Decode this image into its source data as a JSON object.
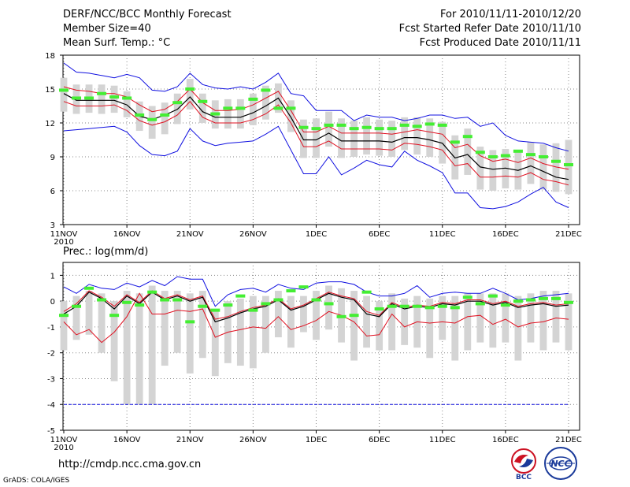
{
  "header": {
    "title": "DERF/NCC/BCC Monthly Forecast",
    "member_size": "Member Size=40",
    "variable": "Mean Surf. Temp.: °C",
    "period": "For 2010/11/11-2010/12/20",
    "fcst_started": "Fcst Started Refer Date 2010/11/10",
    "fcst_produced": "Fcst Produced Date 2010/11/11"
  },
  "footer": {
    "url": "http://cmdp.ncc.cma.gov.cn",
    "grads": "GrADS: COLA/IGES",
    "logo_bcc": "BCC",
    "logo_ncc": "NCC"
  },
  "colors": {
    "envelope": "#1010e0",
    "inner": "#e01020",
    "mean": "#000000",
    "marker": "#44ee33",
    "box": "#d4d4d4",
    "grid": "#888888"
  },
  "chart_data": [
    {
      "type": "line",
      "title": "Mean Surf. Temp.: °C",
      "x_labels": [
        "11NOV",
        "16NOV",
        "21NOV",
        "26NOV",
        "1DEC",
        "6DEC",
        "11DEC",
        "16DEC",
        "21DEC"
      ],
      "x_sub_label": "2010",
      "x_label_days": [
        1,
        6,
        11,
        16,
        21,
        26,
        31,
        36,
        41
      ],
      "xlim": [
        1,
        41
      ],
      "ylim": [
        3,
        18
      ],
      "yticks": [
        3,
        6,
        9,
        12,
        15,
        18
      ],
      "grid": true,
      "series": [
        {
          "name": "max",
          "values": [
            17.3,
            16.5,
            16.4,
            16.2,
            16.0,
            16.3,
            16.0,
            14.9,
            14.8,
            15.2,
            16.4,
            15.4,
            15.1,
            15.0,
            15.2,
            15.0,
            15.6,
            16.4,
            14.6,
            14.4,
            13.1,
            13.1,
            13.1,
            12.2,
            12.7,
            12.5,
            12.5,
            12.2,
            12.4,
            12.7,
            12.7,
            12.4,
            12.5,
            11.7,
            12.0,
            10.9,
            10.4,
            10.3,
            10.2,
            9.8,
            9.5
          ]
        },
        {
          "name": "upper",
          "values": [
            15.2,
            14.9,
            14.8,
            14.6,
            14.6,
            14.3,
            13.6,
            13.0,
            13.2,
            13.9,
            15.0,
            13.8,
            13.1,
            13.1,
            13.2,
            13.6,
            14.2,
            14.8,
            13.1,
            11.2,
            11.2,
            11.7,
            11.1,
            11.1,
            11.1,
            11.1,
            11.0,
            11.2,
            11.4,
            11.2,
            11.0,
            9.8,
            10.1,
            9.1,
            8.6,
            8.8,
            8.5,
            8.9,
            8.4,
            8.1,
            7.9
          ]
        },
        {
          "name": "mean",
          "values": [
            14.6,
            14.0,
            14.0,
            14.0,
            14.0,
            13.6,
            12.6,
            12.3,
            12.7,
            13.2,
            14.3,
            13.0,
            12.5,
            12.5,
            12.5,
            12.9,
            13.5,
            14.2,
            12.5,
            10.5,
            10.5,
            11.1,
            10.4,
            10.4,
            10.4,
            10.4,
            10.3,
            10.7,
            10.7,
            10.5,
            10.2,
            8.9,
            9.2,
            8.1,
            7.9,
            8.0,
            7.8,
            8.2,
            7.7,
            7.2,
            7.0
          ]
        },
        {
          "name": "lower",
          "values": [
            13.9,
            13.5,
            13.5,
            13.5,
            13.6,
            13.1,
            12.2,
            11.8,
            12.1,
            12.7,
            13.9,
            12.5,
            12.0,
            12.0,
            12.0,
            12.3,
            12.8,
            13.6,
            12.0,
            9.9,
            9.9,
            10.4,
            9.7,
            9.7,
            9.7,
            9.7,
            9.6,
            10.2,
            10.1,
            9.9,
            9.6,
            8.2,
            8.4,
            7.2,
            7.2,
            7.3,
            7.2,
            7.6,
            7.0,
            6.8,
            6.5
          ]
        },
        {
          "name": "min",
          "values": [
            11.3,
            11.4,
            11.5,
            11.6,
            11.7,
            11.2,
            10.0,
            9.2,
            9.1,
            9.5,
            11.5,
            10.4,
            10.0,
            10.2,
            10.3,
            10.4,
            11.0,
            11.7,
            9.6,
            7.5,
            7.5,
            9.0,
            7.4,
            8.0,
            8.7,
            8.3,
            8.1,
            9.5,
            8.7,
            8.2,
            7.6,
            5.8,
            5.8,
            4.5,
            4.4,
            4.6,
            5.0,
            5.7,
            6.3,
            5.0,
            4.5
          ]
        },
        {
          "name": "marker",
          "values": [
            14.9,
            14.2,
            14.2,
            14.6,
            14.3,
            14.2,
            12.7,
            12.3,
            12.7,
            13.8,
            15.0,
            13.9,
            12.8,
            13.3,
            13.3,
            14.1,
            14.9,
            13.3,
            13.3,
            11.6,
            11.5,
            11.8,
            11.8,
            11.5,
            11.6,
            11.5,
            11.5,
            11.8,
            11.7,
            11.9,
            11.8,
            10.3,
            10.8,
            9.4,
            9.0,
            9.1,
            9.5,
            9.2,
            9.0,
            8.6,
            8.3
          ]
        },
        {
          "name": "box_low",
          "values": [
            13.0,
            12.8,
            12.9,
            12.8,
            12.9,
            12.5,
            11.3,
            10.6,
            11.0,
            11.9,
            13.2,
            12.0,
            11.5,
            11.5,
            11.5,
            11.8,
            12.3,
            12.9,
            11.2,
            8.9,
            8.9,
            9.9,
            8.9,
            9.0,
            9.2,
            9.1,
            9.0,
            9.6,
            9.2,
            9.0,
            8.4,
            7.0,
            7.4,
            6.1,
            6.0,
            6.2,
            6.1,
            6.6,
            6.1,
            5.9,
            5.7
          ]
        },
        {
          "name": "box_high",
          "values": [
            16.0,
            15.4,
            15.4,
            15.4,
            15.3,
            14.8,
            13.9,
            13.5,
            13.8,
            14.6,
            15.9,
            14.6,
            14.0,
            14.1,
            14.1,
            14.6,
            15.3,
            15.5,
            14.0,
            12.3,
            12.4,
            13.0,
            12.4,
            12.2,
            12.5,
            12.3,
            12.2,
            12.5,
            12.5,
            12.4,
            12.1,
            10.9,
            11.5,
            9.9,
            9.6,
            9.7,
            9.6,
            10.3,
            10.1,
            10.2,
            10.5
          ]
        }
      ]
    },
    {
      "type": "line",
      "title": "Prec.: log(mm/d)",
      "x_labels": [
        "11NOV",
        "16NOV",
        "21NOV",
        "26NOV",
        "1DEC",
        "6DEC",
        "11DEC",
        "16DEC",
        "21DEC"
      ],
      "x_sub_label": "2010",
      "x_label_days": [
        1,
        6,
        11,
        16,
        21,
        26,
        31,
        36,
        41
      ],
      "xlim": [
        1,
        41
      ],
      "ylim": [
        -5,
        1.5
      ],
      "yticks": [
        -5,
        -4,
        -3,
        -2,
        -1,
        0,
        1
      ],
      "grid": true,
      "series": [
        {
          "name": "max",
          "values": [
            0.55,
            0.3,
            0.65,
            0.5,
            0.45,
            0.7,
            0.55,
            0.8,
            0.6,
            0.95,
            0.85,
            0.85,
            -0.2,
            0.25,
            0.45,
            0.5,
            0.35,
            0.65,
            0.5,
            0.45,
            0.7,
            0.75,
            0.75,
            0.65,
            0.35,
            0.2,
            0.2,
            0.3,
            0.6,
            0.15,
            0.3,
            0.35,
            0.3,
            0.3,
            0.5,
            0.3,
            0.05,
            0.1,
            0.2,
            0.25,
            0.3
          ]
        },
        {
          "name": "upper",
          "values": [
            -0.4,
            -0.1,
            0.4,
            0.15,
            -0.2,
            0.25,
            -0.05,
            0.4,
            0.1,
            0.25,
            0.05,
            0.2,
            -0.7,
            -0.6,
            -0.4,
            -0.25,
            -0.15,
            0.1,
            -0.3,
            -0.15,
            0.1,
            0.35,
            0.2,
            0.1,
            -0.4,
            -0.55,
            -0.05,
            -0.25,
            -0.15,
            -0.2,
            -0.05,
            -0.1,
            0.05,
            0.05,
            -0.1,
            0.0,
            -0.2,
            -0.1,
            -0.05,
            -0.15,
            -0.1
          ]
        },
        {
          "name": "mean",
          "values": [
            -0.5,
            -0.2,
            0.35,
            0.1,
            -0.3,
            0.2,
            -0.1,
            0.35,
            0.05,
            0.2,
            0.0,
            0.15,
            -0.8,
            -0.65,
            -0.45,
            -0.3,
            -0.2,
            0.05,
            -0.35,
            -0.2,
            0.05,
            0.3,
            0.15,
            0.05,
            -0.5,
            -0.6,
            -0.1,
            -0.3,
            -0.2,
            -0.25,
            -0.1,
            -0.15,
            0.0,
            0.0,
            -0.15,
            -0.05,
            -0.25,
            -0.15,
            -0.1,
            -0.2,
            -0.15
          ]
        },
        {
          "name": "lower",
          "values": [
            -0.8,
            -1.3,
            -1.1,
            -1.6,
            -1.2,
            -0.6,
            0.3,
            -0.5,
            -0.5,
            -0.35,
            -0.4,
            -0.3,
            -1.4,
            -1.2,
            -1.1,
            -1.0,
            -1.05,
            -0.6,
            -1.1,
            -0.95,
            -0.75,
            -0.4,
            -0.55,
            -0.8,
            -1.35,
            -1.3,
            -0.5,
            -1.0,
            -0.8,
            -0.85,
            -0.8,
            -0.85,
            -0.6,
            -0.55,
            -0.9,
            -0.7,
            -1.0,
            -0.85,
            -0.8,
            -0.65,
            -0.7
          ]
        },
        {
          "name": "min",
          "values": [
            -4.0,
            -4.0,
            -4.0,
            -4.0,
            -4.0,
            -4.0,
            -4.0,
            -4.0,
            -4.0,
            -4.0,
            -4.0,
            -4.0,
            -4.0,
            -4.0,
            -4.0,
            -4.0,
            -4.0,
            -4.0,
            -4.0,
            -4.0,
            -4.0,
            -4.0,
            -4.0,
            -4.0,
            -4.0,
            -4.0,
            -4.0,
            -4.0,
            -4.0,
            -4.0,
            -4.0,
            -4.0,
            -4.0,
            -4.0,
            -4.0,
            -4.0,
            -4.0,
            -4.0,
            -4.0,
            -4.0,
            -4.0
          ]
        },
        {
          "name": "marker",
          "values": [
            -0.55,
            -0.2,
            0.5,
            0.05,
            -0.55,
            -0.05,
            -0.15,
            0.35,
            0.05,
            0.05,
            -0.8,
            -0.2,
            -0.35,
            -0.15,
            0.2,
            -0.35,
            -0.1,
            0.05,
            0.4,
            0.55,
            0.05,
            -0.1,
            -0.6,
            -0.55,
            0.35,
            -0.3,
            -0.2,
            -0.2,
            -0.2,
            -0.25,
            -0.2,
            -0.25,
            0.15,
            -0.1,
            0.2,
            -0.15,
            0.0,
            0.05,
            0.1,
            0.1,
            -0.05
          ]
        },
        {
          "name": "box_low",
          "values": [
            -1.9,
            -1.5,
            -1.3,
            -2.0,
            -3.1,
            -4.0,
            -4.0,
            -4.0,
            -2.5,
            -2.0,
            -2.8,
            -2.2,
            -2.9,
            -2.4,
            -2.5,
            -2.6,
            -2.0,
            -1.4,
            -1.8,
            -1.2,
            -1.5,
            -1.1,
            -1.6,
            -2.3,
            -1.8,
            -1.9,
            -1.9,
            -1.7,
            -1.8,
            -2.2,
            -1.5,
            -2.3,
            -1.9,
            -1.6,
            -1.8,
            -1.6,
            -2.3,
            -1.6,
            -1.9,
            -1.6,
            -1.9
          ]
        },
        {
          "name": "box_high",
          "values": [
            0.0,
            0.2,
            0.4,
            0.3,
            0.0,
            0.4,
            0.3,
            0.6,
            0.4,
            0.4,
            0.3,
            0.4,
            -0.3,
            0.0,
            0.1,
            0.2,
            0.2,
            0.4,
            0.2,
            0.2,
            0.4,
            0.6,
            0.5,
            0.4,
            0.2,
            0.0,
            0.3,
            0.1,
            0.2,
            0.1,
            0.2,
            0.2,
            0.3,
            0.3,
            0.3,
            0.3,
            0.2,
            0.3,
            0.4,
            0.4,
            0.3
          ]
        }
      ]
    }
  ]
}
